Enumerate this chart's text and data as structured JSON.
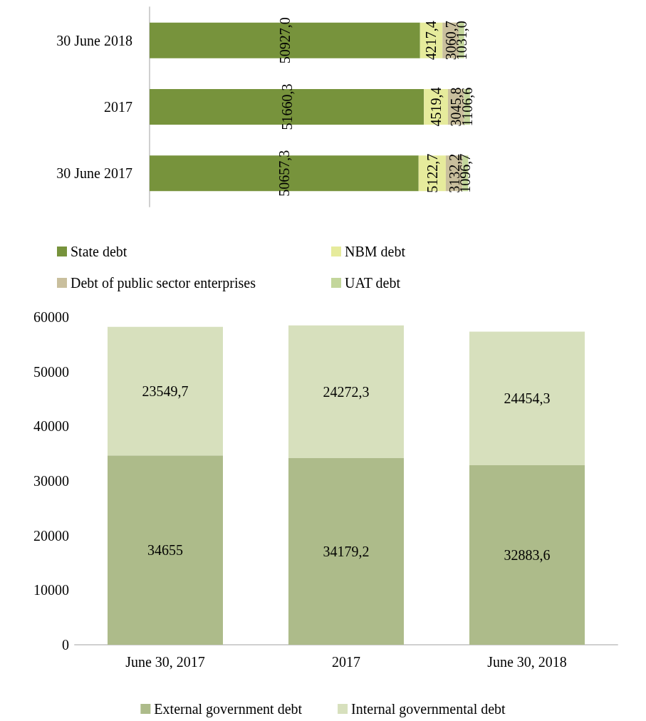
{
  "chart_data": [
    {
      "type": "bar",
      "orientation": "horizontal",
      "stacked": true,
      "categories": [
        "30 June 2018",
        "2017",
        "30 June 2017"
      ],
      "tick_labels": "y",
      "grid": false,
      "legend": "bottom",
      "series": [
        {
          "name": "State debt",
          "color": "#77933c",
          "values": [
            50927.0,
            51660.3,
            50657.3
          ],
          "value_labels": [
            "50927,0",
            "51660,3",
            "50657,3"
          ]
        },
        {
          "name": "NBM debt",
          "color": "#e6eb9c",
          "values": [
            4217.4,
            4519.4,
            5122.7
          ],
          "value_labels": [
            "4217,4",
            "4519,4",
            "5122,7"
          ]
        },
        {
          "name": "Debt of public sector enterprises",
          "color": "#c9bf9d",
          "values": [
            3060.7,
            3045.8,
            3132.2
          ],
          "value_labels": [
            "3060,7",
            "3045,8",
            "3132,2"
          ]
        },
        {
          "name": "UAT debt",
          "color": "#c3d69b",
          "values": [
            1031.0,
            1106.6,
            1096.7
          ],
          "value_labels": [
            "1031,0",
            "1106,6",
            "1096,7"
          ]
        }
      ]
    },
    {
      "type": "bar",
      "stacked": true,
      "categories": [
        "June 30, 2017",
        "2017",
        "June 30, 2018"
      ],
      "ylim": [
        0,
        60000
      ],
      "yticks": [
        0,
        10000,
        20000,
        30000,
        40000,
        50000,
        60000
      ],
      "grid": false,
      "legend": "bottom",
      "series": [
        {
          "name": "External government debt",
          "color": "#adbb8a",
          "values": [
            34655,
            34179.2,
            32883.6
          ],
          "value_labels": [
            "34655",
            "34179,2",
            "32883,6"
          ]
        },
        {
          "name": "Internal governmental debt",
          "color": "#d7e0bd",
          "values": [
            23549.7,
            24272.3,
            24454.3
          ],
          "value_labels": [
            "23549,7",
            "24272,3",
            "24454,3"
          ]
        }
      ]
    }
  ]
}
